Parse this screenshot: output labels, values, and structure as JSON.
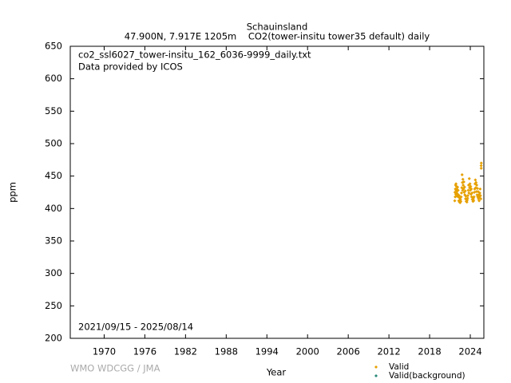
{
  "chart_data": {
    "type": "scatter",
    "title": "Schauinsland",
    "subtitle": "47.900N, 7.917E 1205m    CO2(tower-insitu tower35 default) daily",
    "annotations": [
      "co2_ssl6027_tower-insitu_162_6036-9999_daily.txt",
      "Data provided by ICOS",
      "2021/09/15 - 2025/08/14"
    ],
    "watermark": "WMO WDCGG / JMA",
    "xlabel": "Year",
    "ylabel": "ppm",
    "xlim": [
      1965,
      2026
    ],
    "ylim": [
      200,
      650
    ],
    "xticks": [
      1970,
      1976,
      1982,
      1988,
      1994,
      2000,
      2006,
      2012,
      2018,
      2024
    ],
    "yticks": [
      200,
      250,
      300,
      350,
      400,
      450,
      500,
      550,
      600,
      650
    ],
    "series": [
      {
        "name": "Valid",
        "color": "#e6a000",
        "x": [
          2021.71,
          2021.74,
          2021.77,
          2021.8,
          2021.83,
          2021.86,
          2021.89,
          2021.92,
          2021.95,
          2021.98,
          2022.01,
          2022.05,
          2022.08,
          2022.12,
          2022.16,
          2022.2,
          2022.25,
          2022.3,
          2022.35,
          2022.4,
          2022.45,
          2022.5,
          2022.55,
          2022.6,
          2022.65,
          2022.7,
          2022.75,
          2022.79,
          2022.83,
          2022.87,
          2022.91,
          2022.95,
          2023.0,
          2023.05,
          2023.1,
          2023.15,
          2023.2,
          2023.25,
          2023.3,
          2023.35,
          2023.4,
          2023.45,
          2023.5,
          2023.55,
          2023.6,
          2023.65,
          2023.7,
          2023.75,
          2023.8,
          2023.85,
          2023.9,
          2023.95,
          2024.0,
          2024.05,
          2024.1,
          2024.15,
          2024.2,
          2024.25,
          2024.3,
          2024.35,
          2024.4,
          2024.45,
          2024.5,
          2024.55,
          2024.6,
          2024.65,
          2024.7,
          2024.75,
          2024.8,
          2024.85,
          2024.9,
          2024.95,
          2025.0,
          2025.05,
          2025.1,
          2025.15,
          2025.2,
          2025.25,
          2025.3,
          2025.35,
          2025.4,
          2025.45,
          2025.5,
          2025.55,
          2025.6,
          2025.62,
          2025.61
        ],
        "values": [
          412,
          425,
          418,
          430,
          436,
          422,
          438,
          428,
          434,
          424,
          430,
          419,
          427,
          433,
          422,
          428,
          418,
          412,
          420,
          410,
          416,
          409,
          414,
          411,
          418,
          424,
          432,
          452,
          440,
          428,
          445,
          436,
          430,
          441,
          425,
          433,
          421,
          427,
          415,
          419,
          411,
          414,
          410,
          413,
          416,
          420,
          428,
          436,
          424,
          446,
          432,
          438,
          428,
          434,
          422,
          430,
          418,
          424,
          414,
          417,
          411,
          415,
          412,
          418,
          425,
          430,
          438,
          444,
          432,
          440,
          426,
          436,
          421,
          431,
          418,
          426,
          415,
          421,
          412,
          418,
          424,
          430,
          420,
          415,
          466,
          470,
          462
        ]
      },
      {
        "name": "Valid(background)",
        "color": "#2a8a7a",
        "x": [],
        "values": []
      }
    ],
    "grid": false
  }
}
